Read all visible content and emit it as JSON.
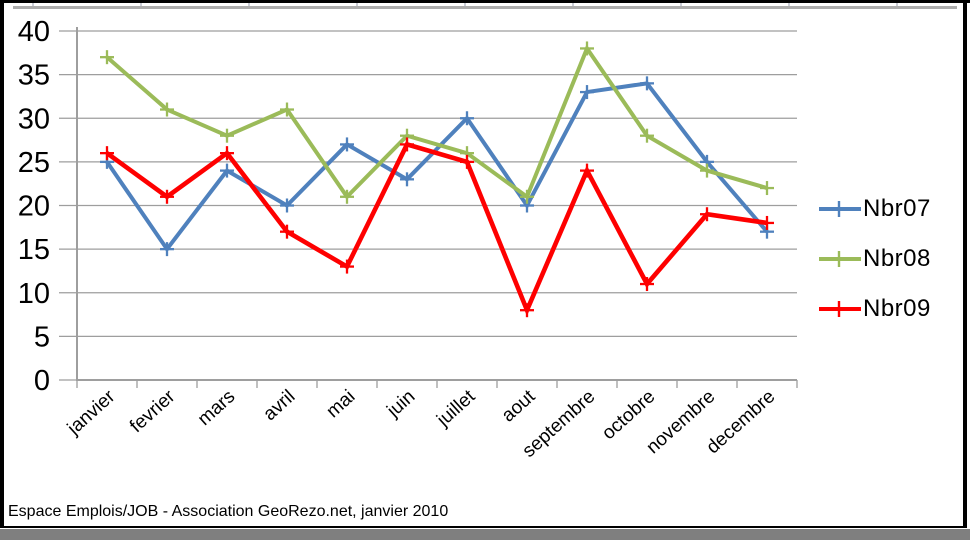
{
  "window": {
    "caption": "Espace Emplois/JOB - Association GeoRezo.net, janvier 2010"
  },
  "chart_data": {
    "type": "line",
    "title": "",
    "xlabel": "",
    "ylabel": "",
    "categories": [
      "janvier",
      "fevrier",
      "mars",
      "avril",
      "mai",
      "juin",
      "juillet",
      "aout",
      "septembre",
      "octobre",
      "novembre",
      "decembre"
    ],
    "series": [
      {
        "name": "Nbr07",
        "color": "#4F81BD",
        "values": [
          25,
          15,
          24,
          20,
          27,
          23,
          30,
          20,
          33,
          34,
          25,
          17
        ]
      },
      {
        "name": "Nbr08",
        "color": "#9BBB59",
        "values": [
          37,
          31,
          28,
          31,
          21,
          28,
          26,
          21,
          38,
          28,
          24,
          22
        ]
      },
      {
        "name": "Nbr09",
        "color": "#FE0000",
        "values": [
          26,
          21,
          26,
          17,
          13,
          27,
          25,
          8,
          24,
          11,
          19,
          18
        ]
      }
    ],
    "ylim": [
      0,
      40
    ],
    "ytick_step": 5,
    "grid": true,
    "marker": "plus",
    "legend_position": "right",
    "grid_color": "#9E9E9E",
    "axis_color": "#9E9E9E",
    "label_color": "#000000"
  }
}
